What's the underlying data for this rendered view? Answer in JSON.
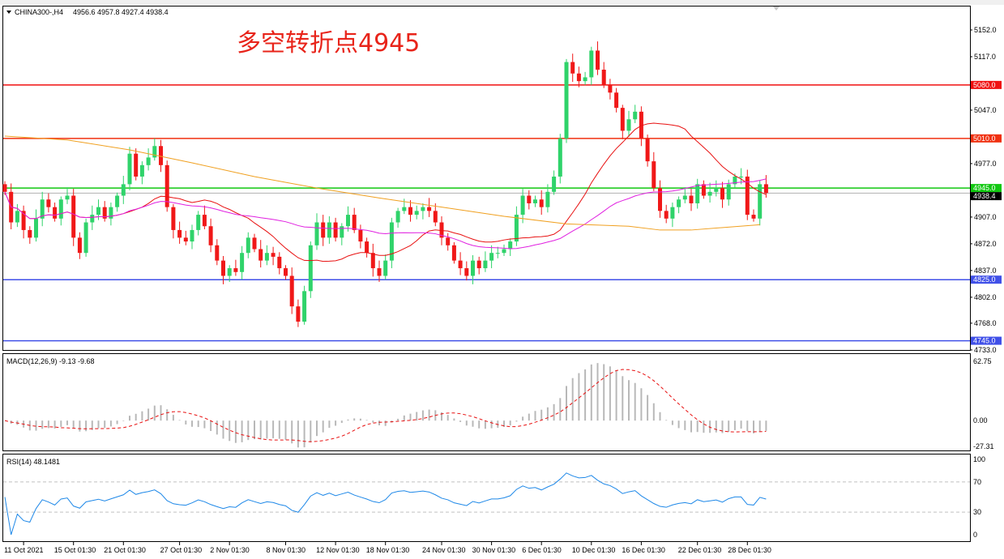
{
  "header": {
    "symbol": "CHINA300-,H4",
    "ohlc": "4956.6 4957.8 4927.4 4938.4"
  },
  "annotation": "多空转折点4945",
  "colors": {
    "up": "#2fd36a",
    "down": "#f01818",
    "ma_fast": "#e81010",
    "ma_mid": "#e020e0",
    "ma_slow": "#f0a020",
    "macd_hist": "#b8b8b8",
    "macd_signal": "#e81010",
    "rsi": "#1e88e8"
  },
  "chart_data": [
    {
      "type": "candlestick",
      "title": "CHINA300-,H4",
      "ylim": [
        4733,
        5160
      ],
      "yticks": [
        "5152.0",
        "5117.0",
        "5047.0",
        "4977.0",
        "4907.0",
        "4872.0",
        "4837.0",
        "4802.0",
        "4768.0",
        "4733.0"
      ],
      "close": [
        4940,
        4900,
        4915,
        4890,
        4880,
        4905,
        4930,
        4920,
        4905,
        4930,
        4935,
        4880,
        4860,
        4900,
        4910,
        4920,
        4905,
        4920,
        4935,
        4950,
        4990,
        4960,
        4975,
        4985,
        5000,
        4975,
        4920,
        4890,
        4880,
        4875,
        4890,
        4910,
        4895,
        4870,
        4850,
        4830,
        4840,
        4835,
        4860,
        4880,
        4865,
        4850,
        4860,
        4855,
        4840,
        4830,
        4790,
        4770,
        4810,
        4870,
        4900,
        4880,
        4900,
        4880,
        4895,
        4910,
        4890,
        4875,
        4860,
        4840,
        4830,
        4850,
        4900,
        4915,
        4920,
        4910,
        4915,
        4920,
        4915,
        4900,
        4880,
        4870,
        4850,
        4840,
        4830,
        4850,
        4840,
        4850,
        4860,
        4860,
        4865,
        4875,
        4910,
        4935,
        4925,
        4930,
        4920,
        4940,
        4960,
        5010,
        5110,
        5095,
        5085,
        5090,
        5125,
        5100,
        5080,
        5070,
        5050,
        5020,
        5035,
        5045,
        5010,
        4980,
        4945,
        4915,
        4905,
        4920,
        4930,
        4935,
        4925,
        4950,
        4935,
        4940,
        4945,
        4930,
        4950,
        4960,
        4960,
        4910,
        4905,
        4950,
        4938.4
      ],
      "slow_ma": [
        [
          0,
          5013
        ],
        [
          10,
          5008
        ],
        [
          20,
          4995
        ],
        [
          30,
          4978
        ],
        [
          40,
          4960
        ],
        [
          50,
          4945
        ],
        [
          60,
          4932
        ],
        [
          70,
          4920
        ],
        [
          80,
          4908
        ],
        [
          90,
          4898
        ],
        [
          100,
          4895
        ],
        [
          105,
          4890
        ],
        [
          110,
          4890
        ],
        [
          121,
          4897
        ]
      ],
      "hlines": [
        {
          "label": "5080.0",
          "value": 5080,
          "color": "#f01010"
        },
        {
          "label": "5010.0",
          "value": 5010,
          "color": "#f03010"
        },
        {
          "label": "4945.0",
          "value": 4945,
          "color": "#10c810"
        },
        {
          "label": "4938.4",
          "value": 4938.4,
          "color": "#000000"
        },
        {
          "label": "4825.0",
          "value": 4825,
          "color": "#4050e8"
        },
        {
          "label": "4745.0",
          "value": 4745,
          "color": "#4050e8"
        }
      ],
      "xticks": [
        {
          "bar": 3,
          "label": "11 Oct 2021"
        },
        {
          "bar": 11,
          "label": "15 Oct 01:30"
        },
        {
          "bar": 19,
          "label": "21 Oct 01:30"
        },
        {
          "bar": 28,
          "label": "27 Oct 01:30"
        },
        {
          "bar": 36,
          "label": "2 Nov 01:30"
        },
        {
          "bar": 45,
          "label": "8 Nov 01:30"
        },
        {
          "bar": 53,
          "label": "12 Nov 01:30"
        },
        {
          "bar": 61,
          "label": "18 Nov 01:30"
        },
        {
          "bar": 70,
          "label": "24 Nov 01:30"
        },
        {
          "bar": 78,
          "label": "30 Nov 01:30"
        },
        {
          "bar": 86,
          "label": "6 Dec 01:30"
        },
        {
          "bar": 94,
          "label": "10 Dec 01:30"
        },
        {
          "bar": 102,
          "label": "16 Dec 01:30"
        },
        {
          "bar": 111,
          "label": "22 Dec 01:30"
        },
        {
          "bar": 119,
          "label": "28 Dec 01:30"
        }
      ]
    },
    {
      "type": "bar",
      "title": "MACD(12,26,9) -9.13 -9.68",
      "ylim": [
        -27.31,
        62.75
      ],
      "yticks": [
        "62.75",
        "0.00",
        "-27.31"
      ]
    },
    {
      "type": "line",
      "title": "RSI(14) 48.1481",
      "ylim": [
        0,
        100
      ],
      "yticks": [
        "100",
        "70",
        "30",
        "0"
      ],
      "levels": [
        70,
        30
      ]
    }
  ]
}
